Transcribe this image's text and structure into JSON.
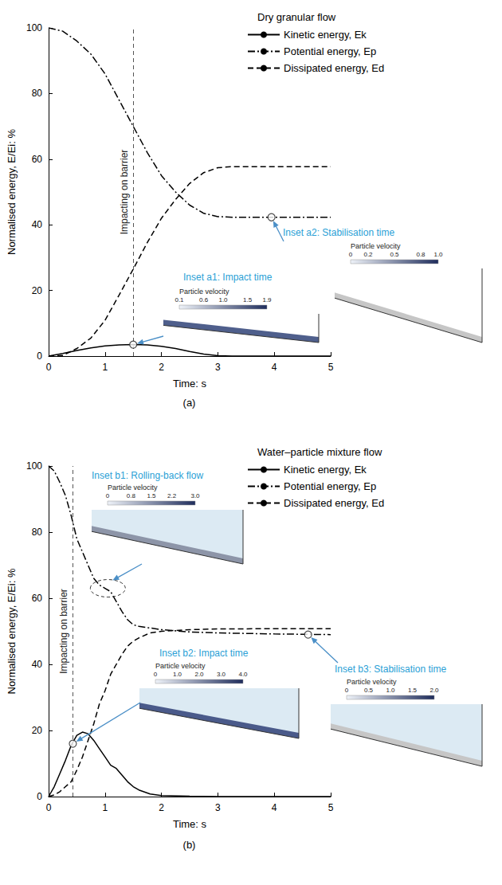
{
  "chart_data": [
    {
      "type": "line",
      "title": "Dry granular flow",
      "panel_label": "(a)",
      "x_label": "Time: s",
      "y_label": "Normalised energy, E/Ei: %",
      "x": [
        0,
        0.25,
        0.5,
        0.75,
        1,
        1.25,
        1.5,
        1.75,
        2,
        2.25,
        2.5,
        2.75,
        3,
        3.25,
        3.5,
        3.75,
        4,
        4.25,
        4.5,
        4.75,
        5
      ],
      "series": [
        {
          "name": "Kinetic energy, Ek",
          "color": "#000000",
          "line_style": "solid",
          "values": [
            0,
            0.8,
            1.7,
            2.5,
            3.1,
            3.4,
            3.5,
            3.4,
            3.0,
            2.3,
            1.4,
            0.6,
            0.1,
            0,
            0,
            0,
            0,
            0,
            0,
            0,
            0
          ]
        },
        {
          "name": "Potential energy, Ep",
          "color": "#000000",
          "line_style": "dashdot",
          "values": [
            100,
            99,
            96,
            92,
            86,
            78,
            70,
            62,
            55,
            50,
            46,
            43.5,
            42.5,
            42.3,
            42.3,
            42.3,
            42.3,
            42.3,
            42.3,
            42.3,
            42.3
          ]
        },
        {
          "name": "Dissipated energy, Ed",
          "color": "#000000",
          "line_style": "dashed",
          "values": [
            0,
            0.2,
            2.3,
            5.5,
            10.9,
            18.6,
            26.5,
            34.6,
            42,
            47.7,
            52.6,
            55.9,
            57.4,
            57.7,
            57.7,
            57.7,
            57.7,
            57.7,
            57.7,
            57.7,
            57.7
          ]
        }
      ],
      "xlim": [
        0,
        5
      ],
      "xticks": [
        0,
        1,
        2,
        3,
        4,
        5
      ],
      "ylim": [
        0,
        100
      ],
      "yticks": [
        0,
        20,
        40,
        60,
        80,
        100
      ],
      "grid": false,
      "legend": "upper right",
      "annotations": [
        {
          "text": "Impacting on barrier",
          "x": 1.5
        }
      ],
      "insets": [
        {
          "title": "Inset a1: Impact time",
          "colorbar_label": "Particle velocity",
          "colorbar_range": [
            0.1,
            1.9
          ],
          "colorbar_ticks": [
            0.1,
            0.6,
            {
              "value": 1,
              "label": "1.0"
            },
            1.5,
            1.9
          ],
          "point": [
            1.5,
            3.5
          ],
          "marker": "circle"
        },
        {
          "title": "Inset a2: Stabilisation time",
          "colorbar_label": "Particle velocity",
          "colorbar_range": [
            0,
            1
          ],
          "colorbar_ticks": [
            0,
            0.2,
            0.5,
            0.8,
            {
              "value": 1,
              "label": "1.0"
            }
          ],
          "point": [
            3.95,
            42.3
          ],
          "marker": "circle"
        }
      ]
    },
    {
      "type": "line",
      "title": "Water–particle mixture flow",
      "panel_label": "(b)",
      "x_label": "Time: s",
      "y_label": "Normalised energy, E/Ei: %",
      "x": [
        0,
        0.1,
        0.2,
        0.3,
        0.4,
        0.5,
        0.6,
        0.7,
        0.8,
        0.9,
        1.0,
        1.1,
        1.2,
        1.3,
        1.4,
        1.5,
        1.6,
        1.8,
        2,
        2.5,
        3,
        4,
        5
      ],
      "series": [
        {
          "name": "Kinetic energy, Ek",
          "color": "#000000",
          "line_style": "solid",
          "values": [
            0,
            3,
            7,
            11,
            15.5,
            18.5,
            19.5,
            19,
            17,
            14.5,
            12,
            9.5,
            8.5,
            6.5,
            4.5,
            3,
            2,
            0.8,
            0.3,
            0.1,
            0,
            0,
            0
          ]
        },
        {
          "name": "Potential energy, Ep",
          "color": "#000000",
          "line_style": "dashdot",
          "values": [
            100,
            98.5,
            95,
            91,
            85,
            78,
            74,
            70,
            66,
            64,
            63,
            62,
            59,
            56,
            53.5,
            52,
            51.5,
            51,
            50.5,
            49.8,
            49.5,
            49.2,
            49
          ]
        },
        {
          "name": "Dissipated energy, Ed",
          "color": "#000000",
          "line_style": "dashed",
          "values": [
            0,
            0.5,
            1.5,
            3,
            4.5,
            8,
            12,
            17,
            22,
            28,
            32,
            37,
            40,
            43,
            45.5,
            47,
            48,
            49.5,
            50,
            50.5,
            50.7,
            50.8,
            50.8
          ]
        }
      ],
      "xlim": [
        0,
        5
      ],
      "xticks": [
        0,
        1,
        2,
        3,
        4,
        5
      ],
      "ylim": [
        0,
        100
      ],
      "yticks": [
        0,
        20,
        40,
        60,
        80,
        100
      ],
      "grid": false,
      "legend": "upper right",
      "annotations": [
        {
          "text": "Impacting on barrier",
          "x": 0.43
        }
      ],
      "insets": [
        {
          "title": "Inset b1: Rolling-back flow",
          "colorbar_label": "Particle velocity",
          "colorbar_range": [
            0,
            3
          ],
          "colorbar_ticks": [
            0,
            0.8,
            1.5,
            2.2,
            {
              "value": 3,
              "label": "3.0"
            }
          ],
          "point": [
            1.05,
            63
          ],
          "marker": "ellipse"
        },
        {
          "title": "Inset b2: Impact time",
          "colorbar_label": "Particle velocity",
          "colorbar_range": [
            0,
            4
          ],
          "colorbar_ticks": [
            0,
            {
              "value": 1,
              "label": "1.0"
            },
            {
              "value": 2,
              "label": "2.0"
            },
            {
              "value": 3,
              "label": "3.0"
            },
            {
              "value": 4,
              "label": "4.0"
            }
          ],
          "point": [
            0.43,
            16
          ],
          "marker": "circle"
        },
        {
          "title": "Inset b3: Stabilisation time",
          "colorbar_label": "Particle velocity",
          "colorbar_range": [
            0,
            2
          ],
          "colorbar_ticks": [
            0,
            0.5,
            {
              "value": 1,
              "label": "1.0"
            },
            1.5,
            {
              "value": 2,
              "label": "2.0"
            }
          ],
          "point": [
            4.6,
            49
          ],
          "marker": "circle"
        }
      ]
    }
  ]
}
